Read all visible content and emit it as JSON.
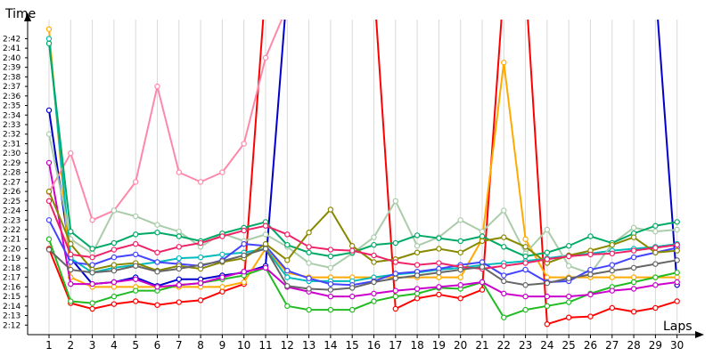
{
  "chart_data": {
    "type": "line",
    "title": "",
    "xlabel": "Laps",
    "ylabel": "Time",
    "x": [
      1,
      2,
      3,
      4,
      5,
      6,
      7,
      8,
      9,
      10,
      11,
      12,
      13,
      14,
      15,
      16,
      17,
      18,
      19,
      20,
      21,
      22,
      23,
      24,
      25,
      26,
      27,
      28,
      29,
      30
    ],
    "x_tick_labels": [
      "1",
      "2",
      "3",
      "4",
      "5",
      "6",
      "7",
      "8",
      "9",
      "10",
      "11",
      "12",
      "13",
      "14",
      "15",
      "16",
      "17",
      "18",
      "19",
      "20",
      "21",
      "22",
      "23",
      "24",
      "25",
      "26",
      "27",
      "28",
      "29",
      "30"
    ],
    "y_tick_labels": [
      "2:12",
      "2:13",
      "2:14",
      "2:15",
      "2:16",
      "2:17",
      "2:18",
      "2:19",
      "2:20",
      "2:21",
      "2:22",
      "2:23",
      "2:24",
      "2:25",
      "2:26",
      "2:27",
      "2:28",
      "2:29",
      "2:30",
      "2:31",
      "2:32",
      "2:33",
      "2:34",
      "2:35",
      "2:36",
      "2:37",
      "2:38",
      "2:39",
      "2:40",
      "2:41",
      "2:42"
    ],
    "y_tick_seconds": [
      132,
      133,
      134,
      135,
      136,
      137,
      138,
      139,
      140,
      141,
      142,
      143,
      144,
      145,
      146,
      147,
      148,
      149,
      150,
      151,
      152,
      153,
      154,
      155,
      156,
      157,
      158,
      159,
      160,
      161,
      162
    ],
    "ylim_seconds": [
      131,
      164
    ],
    "grid": "vertical",
    "legend": "none",
    "series": [
      {
        "color": "#ff0000",
        "values_seconds": [
          140,
          134.3,
          133.7,
          134.2,
          134.5,
          134.1,
          134.4,
          134.6,
          135.5,
          136.3,
          null,
          null,
          null,
          null,
          null,
          null,
          133.7,
          134.8,
          135.2,
          134.8,
          135.7,
          null,
          null,
          132.1,
          132.8,
          132.9,
          133.8,
          133.4,
          133.8,
          134.5
        ]
      },
      {
        "color": "#0000cc",
        "values_seconds": [
          154.5,
          139,
          136.3,
          136.5,
          137,
          136.1,
          136.8,
          136.8,
          137.2,
          137.5,
          138.2,
          null,
          null,
          null,
          null,
          null,
          null,
          null,
          null,
          null,
          null,
          null,
          null,
          null,
          null,
          null,
          null,
          null,
          null,
          136.2
        ]
      },
      {
        "color": "#ffaa00",
        "values_seconds": [
          163,
          137,
          136,
          136,
          136,
          136,
          136,
          136,
          136,
          136.5,
          140,
          137.5,
          137,
          137,
          137,
          137,
          137,
          137,
          137,
          137,
          141,
          159.5,
          141,
          137,
          137,
          137,
          137,
          137,
          137,
          137
        ]
      },
      {
        "color": "#22bb22",
        "values_seconds": [
          141,
          134.5,
          134.3,
          135,
          135.6,
          135.6,
          136.2,
          136.4,
          136.8,
          137.2,
          138,
          134,
          133.6,
          133.6,
          133.6,
          134.5,
          135,
          135.3,
          135.9,
          135.8,
          136.5,
          132.8,
          133.6,
          134,
          134.4,
          135.3,
          136,
          136.5,
          137,
          137.5
        ]
      },
      {
        "color": "#00bbbb",
        "values_seconds": [
          162,
          139,
          137.5,
          138,
          138.3,
          138.6,
          139,
          139.1,
          139.4,
          139.6,
          140,
          137,
          136.6,
          136.6,
          136.6,
          137,
          137.3,
          137.5,
          137.8,
          138,
          138.3,
          138.5,
          138.7,
          139,
          139.3,
          139.5,
          139.8,
          140,
          140.2,
          140.5
        ]
      },
      {
        "color": "#cc00cc",
        "values_seconds": [
          149,
          136.3,
          136.3,
          136.5,
          136.8,
          136,
          136.2,
          136.4,
          137,
          137.6,
          138,
          136,
          135.5,
          135,
          135,
          135.3,
          135.6,
          135.8,
          136,
          136.2,
          136.5,
          135.3,
          135,
          135,
          135,
          135.2,
          135.6,
          135.8,
          136.2,
          136.5
        ]
      },
      {
        "color": "#ff88aa",
        "values_seconds": [
          145.9,
          150,
          143,
          144,
          147,
          157,
          148,
          147,
          148,
          151,
          160,
          null,
          null,
          null,
          null,
          null,
          null,
          null,
          null,
          null,
          null,
          null,
          null,
          null,
          null,
          null,
          null,
          null,
          null,
          null
        ]
      },
      {
        "color": "#aaccaa",
        "values_seconds": [
          152,
          141,
          139.5,
          144,
          143.4,
          142.5,
          141.8,
          140.2,
          141.6,
          140.8,
          141.5,
          140.2,
          138.5,
          138,
          139.5,
          141.2,
          145,
          140.3,
          141.2,
          143,
          141.8,
          144,
          139.5,
          142,
          138.2,
          137.4,
          140.5,
          142.2,
          141.8,
          142
        ]
      },
      {
        "color": "#4444ff",
        "values_seconds": [
          143,
          138.6,
          138.3,
          139.1,
          139.4,
          138.6,
          138.4,
          138.2,
          138.8,
          140.5,
          140.3,
          137.7,
          136.9,
          136.3,
          136.2,
          136.6,
          137.4,
          137.6,
          137.9,
          138.3,
          138.6,
          137.2,
          137.8,
          136.5,
          136.6,
          137.8,
          138.3,
          139.1,
          139.6,
          140.1
        ]
      },
      {
        "color": "#00aa66",
        "values_seconds": [
          161.5,
          141.8,
          140,
          140.6,
          141.5,
          141.7,
          141.3,
          140.8,
          141.6,
          142.2,
          142.8,
          140.4,
          139.6,
          139.2,
          139.6,
          140.4,
          140.6,
          141.4,
          141.1,
          140.8,
          141.3,
          140.2,
          139.2,
          139.6,
          140.3,
          141.3,
          140.6,
          141.6,
          142.4,
          142.8
        ]
      },
      {
        "color": "#888800",
        "values_seconds": [
          146,
          140.5,
          137.8,
          138.3,
          138.5,
          137.7,
          138.2,
          137.9,
          138.6,
          139,
          140.5,
          138.8,
          141.7,
          144.1,
          140.3,
          138.6,
          138.9,
          139.6,
          140,
          139.6,
          140.8,
          141.2,
          140.2,
          138.5,
          139.3,
          139.8,
          140.4,
          141.2,
          139.6,
          139.8
        ]
      },
      {
        "color": "#ee2266",
        "values_seconds": [
          145,
          139.4,
          139.1,
          139.9,
          140.5,
          139.6,
          140.2,
          140.6,
          141.3,
          141.9,
          142.4,
          141.5,
          140.2,
          139.9,
          139.8,
          139.3,
          138.6,
          138.3,
          138.5,
          138.1,
          137.9,
          138.2,
          138.5,
          138.9,
          139.2,
          139.4,
          139.5,
          139.8,
          140.1,
          140.4
        ]
      },
      {
        "color": "#666666",
        "values_seconds": [
          139.9,
          137.8,
          137.5,
          137.7,
          138.2,
          137.6,
          137.9,
          138.3,
          138.7,
          139.3,
          140,
          136.1,
          135.8,
          135.7,
          135.9,
          136.5,
          136.9,
          137.2,
          137.5,
          137.8,
          138.1,
          136.6,
          136.2,
          136.4,
          136.9,
          137.3,
          137.7,
          138,
          138.4,
          138.8
        ]
      }
    ]
  }
}
